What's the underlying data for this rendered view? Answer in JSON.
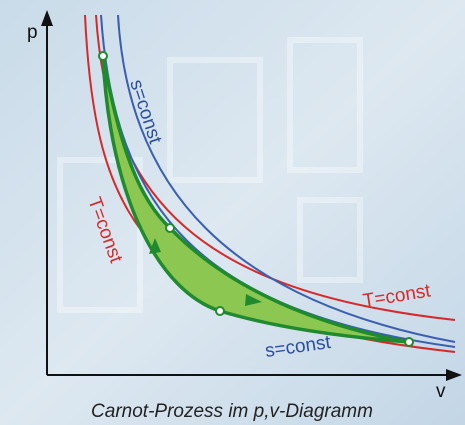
{
  "axes": {
    "y_label": "p",
    "x_label": "v"
  },
  "labels": [
    "s=const",
    "T=const",
    "T=const",
    "s=const"
  ],
  "caption": "Carnot-Prozess im p,v-Diagramm"
}
